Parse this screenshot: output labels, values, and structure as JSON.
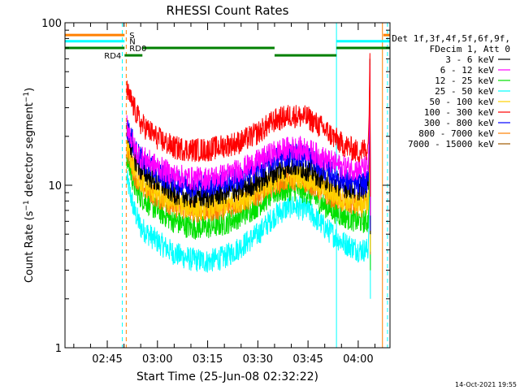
{
  "chart_data": {
    "type": "line",
    "title": "RHESSI Count Rates",
    "xlabel": "Start Time (25-Jun-08 02:32:22)",
    "ylabel": "Count Rate (s⁻¹ detector segment⁻¹)",
    "ylabel_main": "Count Rate (s",
    "ylabel_sup1": "−1",
    "ylabel_mid": " detector segment",
    "ylabel_sup2": "−1",
    "ylabel_end": ")",
    "y_scale": "log",
    "ylim": [
      1,
      100
    ],
    "y_ticks": [
      {
        "value": 1,
        "label": "1"
      },
      {
        "value": 10,
        "label": "10"
      },
      {
        "value": 100,
        "label": "100"
      }
    ],
    "xlim": [
      "02:32:22",
      "04:09:30"
    ],
    "x_ticks": [
      {
        "value": "02:45",
        "label": "02:45"
      },
      {
        "value": "03:00",
        "label": "03:00"
      },
      {
        "value": "03:15",
        "label": "03:15"
      },
      {
        "value": "03:30",
        "label": "03:30"
      },
      {
        "value": "03:45",
        "label": "03:45"
      },
      {
        "value": "04:00",
        "label": "04:00"
      }
    ],
    "legend": {
      "placement": "right",
      "header": [
        "Det 1f,3f,4f,5f,6f,9f,",
        "FDecim 1, Att 0"
      ]
    },
    "series": [
      {
        "name": "3 - 6 keV",
        "color": "#000000",
        "values": [
          [
            "02:50:50",
            22.0
          ],
          [
            "02:53:00",
            15.0
          ],
          [
            "02:55:00",
            12.5
          ],
          [
            "03:00:00",
            10.5
          ],
          [
            "03:05:00",
            9.0
          ],
          [
            "03:10:00",
            8.5
          ],
          [
            "03:15:00",
            8.5
          ],
          [
            "03:20:00",
            9.0
          ],
          [
            "03:25:00",
            9.5
          ],
          [
            "03:30:00",
            10.5
          ],
          [
            "03:35:00",
            12.0
          ],
          [
            "03:40:00",
            13.5
          ],
          [
            "03:45:00",
            12.5
          ],
          [
            "03:50:00",
            11.0
          ],
          [
            "03:55:00",
            10.0
          ],
          [
            "04:00:00",
            9.5
          ],
          [
            "04:03:00",
            10.0
          ],
          [
            "04:03:30",
            60.0
          ]
        ]
      },
      {
        "name": "6 - 12 keV",
        "color": "#ff00ff",
        "values": [
          [
            "02:50:50",
            24.0
          ],
          [
            "02:53:00",
            17.0
          ],
          [
            "02:55:00",
            15.0
          ],
          [
            "03:00:00",
            13.0
          ],
          [
            "03:05:00",
            11.5
          ],
          [
            "03:10:00",
            11.0
          ],
          [
            "03:15:00",
            11.0
          ],
          [
            "03:20:00",
            11.5
          ],
          [
            "03:25:00",
            12.5
          ],
          [
            "03:30:00",
            14.0
          ],
          [
            "03:35:00",
            16.0
          ],
          [
            "03:40:00",
            17.0
          ],
          [
            "03:45:00",
            16.5
          ],
          [
            "03:50:00",
            14.5
          ],
          [
            "03:55:00",
            13.0
          ],
          [
            "04:00:00",
            12.5
          ],
          [
            "04:03:00",
            13.0
          ],
          [
            "04:03:30",
            55.0
          ]
        ]
      },
      {
        "name": "12 - 25 keV",
        "color": "#00e000",
        "values": [
          [
            "02:50:50",
            15.0
          ],
          [
            "02:53:00",
            10.0
          ],
          [
            "02:55:00",
            8.5
          ],
          [
            "03:00:00",
            7.0
          ],
          [
            "03:05:00",
            6.0
          ],
          [
            "03:10:00",
            5.5
          ],
          [
            "03:15:00",
            5.5
          ],
          [
            "03:20:00",
            5.8
          ],
          [
            "03:25:00",
            6.5
          ],
          [
            "03:30:00",
            7.5
          ],
          [
            "03:35:00",
            9.0
          ],
          [
            "03:40:00",
            9.5
          ],
          [
            "03:45:00",
            9.0
          ],
          [
            "03:50:00",
            7.5
          ],
          [
            "03:55:00",
            6.5
          ],
          [
            "04:00:00",
            6.0
          ],
          [
            "04:03:00",
            6.0
          ],
          [
            "04:03:30",
            40.0
          ]
        ]
      },
      {
        "name": "25 - 50 keV",
        "color": "#00ffff",
        "values": [
          [
            "02:50:50",
            11.0
          ],
          [
            "02:53:00",
            7.0
          ],
          [
            "02:55:00",
            5.5
          ],
          [
            "03:00:00",
            4.5
          ],
          [
            "03:05:00",
            3.8
          ],
          [
            "03:10:00",
            3.5
          ],
          [
            "03:15:00",
            3.4
          ],
          [
            "03:20:00",
            3.6
          ],
          [
            "03:25:00",
            4.2
          ],
          [
            "03:30:00",
            5.0
          ],
          [
            "03:35:00",
            6.5
          ],
          [
            "03:40:00",
            7.5
          ],
          [
            "03:45:00",
            7.0
          ],
          [
            "03:50:00",
            5.5
          ],
          [
            "03:55:00",
            4.5
          ],
          [
            "04:00:00",
            4.0
          ],
          [
            "04:03:00",
            4.0
          ],
          [
            "04:03:30",
            30.0
          ]
        ]
      },
      {
        "name": "50 - 100 keV",
        "color": "#ffd000",
        "values": [
          [
            "02:50:50",
            18.0
          ],
          [
            "02:53:00",
            12.5
          ],
          [
            "02:55:00",
            10.5
          ],
          [
            "03:00:00",
            8.8
          ],
          [
            "03:05:00",
            7.8
          ],
          [
            "03:10:00",
            7.3
          ],
          [
            "03:15:00",
            7.3
          ],
          [
            "03:20:00",
            7.6
          ],
          [
            "03:25:00",
            8.2
          ],
          [
            "03:30:00",
            9.2
          ],
          [
            "03:35:00",
            10.8
          ],
          [
            "03:40:00",
            11.5
          ],
          [
            "03:45:00",
            11.0
          ],
          [
            "03:50:00",
            9.5
          ],
          [
            "03:55:00",
            8.3
          ],
          [
            "04:00:00",
            7.8
          ],
          [
            "04:03:00",
            7.8
          ],
          [
            "04:03:30",
            45.0
          ]
        ]
      },
      {
        "name": "100 - 300 keV",
        "color": "#ff0000",
        "values": [
          [
            "02:50:50",
            38.0
          ],
          [
            "02:53:00",
            30.0
          ],
          [
            "02:55:00",
            24.0
          ],
          [
            "03:00:00",
            19.5
          ],
          [
            "03:05:00",
            17.0
          ],
          [
            "03:10:00",
            16.5
          ],
          [
            "03:15:00",
            16.5
          ],
          [
            "03:20:00",
            17.5
          ],
          [
            "03:25:00",
            18.5
          ],
          [
            "03:30:00",
            21.0
          ],
          [
            "03:35:00",
            25.0
          ],
          [
            "03:40:00",
            27.0
          ],
          [
            "03:45:00",
            26.0
          ],
          [
            "03:50:00",
            22.0
          ],
          [
            "03:55:00",
            18.0
          ],
          [
            "04:00:00",
            16.0
          ],
          [
            "04:03:00",
            17.0
          ],
          [
            "04:03:30",
            65.0
          ]
        ]
      },
      {
        "name": "300 - 800 keV",
        "color": "#0000ff",
        "values": [
          [
            "02:50:50",
            23.0
          ],
          [
            "02:53:00",
            17.5
          ],
          [
            "02:55:00",
            14.5
          ],
          [
            "03:00:00",
            12.0
          ],
          [
            "03:05:00",
            10.5
          ],
          [
            "03:10:00",
            10.0
          ],
          [
            "03:15:00",
            10.0
          ],
          [
            "03:20:00",
            10.5
          ],
          [
            "03:25:00",
            11.0
          ],
          [
            "03:30:00",
            12.5
          ],
          [
            "03:35:00",
            14.5
          ],
          [
            "03:40:00",
            15.5
          ],
          [
            "03:45:00",
            15.0
          ],
          [
            "03:50:00",
            12.5
          ],
          [
            "03:55:00",
            11.0
          ],
          [
            "04:00:00",
            10.0
          ],
          [
            "04:03:00",
            10.5
          ],
          [
            "04:03:30",
            50.0
          ]
        ]
      },
      {
        "name": "800 - 7000 keV",
        "color": "#ff8000",
        "values": [
          [
            "02:50:50",
            17.0
          ],
          [
            "02:53:00",
            12.0
          ],
          [
            "02:55:00",
            10.0
          ],
          [
            "03:00:00",
            8.5
          ],
          [
            "03:05:00",
            7.5
          ],
          [
            "03:10:00",
            7.0
          ],
          [
            "03:15:00",
            7.0
          ],
          [
            "03:20:00",
            7.3
          ],
          [
            "03:25:00",
            7.9
          ],
          [
            "03:30:00",
            8.8
          ],
          [
            "03:35:00",
            10.3
          ],
          [
            "03:40:00",
            11.0
          ],
          [
            "03:45:00",
            10.5
          ],
          [
            "03:50:00",
            9.0
          ],
          [
            "03:55:00",
            8.0
          ],
          [
            "04:00:00",
            7.5
          ],
          [
            "04:03:00",
            7.5
          ],
          [
            "04:03:30",
            42.0
          ]
        ]
      },
      {
        "name": "7000 - 15000 keV",
        "color": "#a05a00",
        "values": []
      }
    ],
    "flag_bars": [
      {
        "label": "S",
        "color": "#ff8000",
        "value": 84,
        "segments": [
          [
            "02:32:22",
            "02:50:10"
          ],
          [
            "04:07:30",
            "04:09:30"
          ]
        ]
      },
      {
        "label": "N",
        "color": "#00ffff",
        "value": 77,
        "segments": [
          [
            "02:32:22",
            "02:50:10"
          ],
          [
            "03:53:30",
            "04:09:30"
          ]
        ]
      },
      {
        "label": "RD0",
        "color": "#008000",
        "value": 70,
        "segments": [
          [
            "02:32:22",
            "02:50:10"
          ],
          [
            "02:55:30",
            "03:35:00"
          ],
          [
            "03:53:30",
            "04:09:30"
          ]
        ]
      },
      {
        "label": "RD4",
        "color": "#008000",
        "value": 63,
        "segments": [
          [
            "02:50:10",
            "02:55:30"
          ],
          [
            "03:35:00",
            "03:53:30"
          ]
        ]
      }
    ],
    "vlines": [
      {
        "time": "02:32:22",
        "color": "#00ffff",
        "style": "solid"
      },
      {
        "time": "02:49:30",
        "color": "#00ffff",
        "style": "dashed"
      },
      {
        "time": "02:50:40",
        "color": "#ff8000",
        "style": "dashed"
      },
      {
        "time": "03:53:30",
        "color": "#00ffff",
        "style": "solid"
      },
      {
        "time": "04:07:15",
        "color": "#ff8000",
        "style": "solid"
      },
      {
        "time": "04:08:45",
        "color": "#00ffff",
        "style": "dashed"
      }
    ],
    "timestamp": "14-Oct-2021 19:55"
  }
}
